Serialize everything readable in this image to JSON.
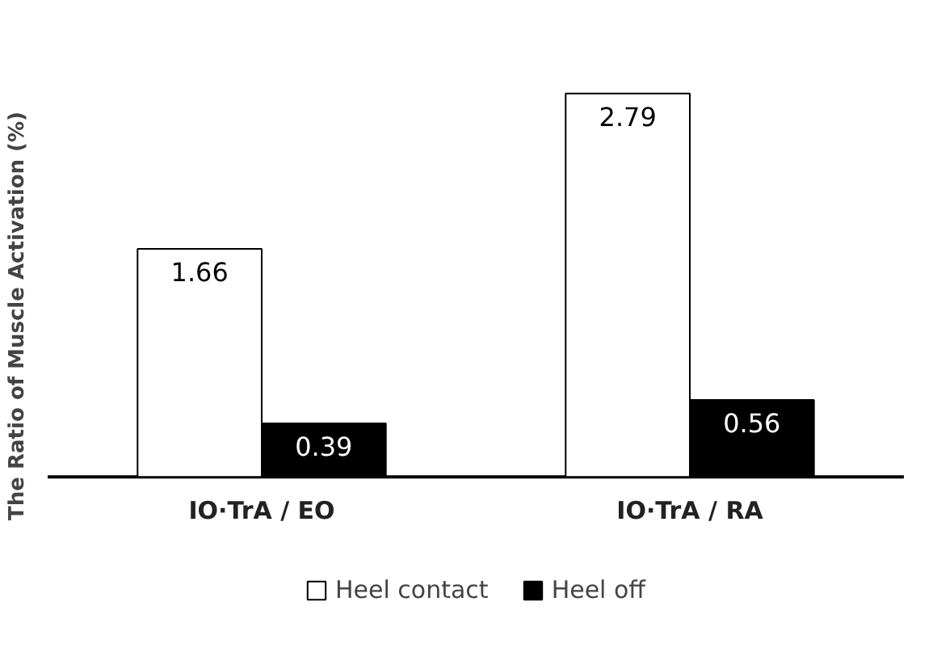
{
  "chart_data": {
    "type": "bar",
    "ylabel": "The Ratio of Muscle Activation (%)",
    "categories": [
      "IO·TrA / EO",
      "IO·TrA / RA"
    ],
    "series": [
      {
        "name": "Heel contact",
        "color": "#ffffff",
        "values": [
          1.66,
          2.79
        ]
      },
      {
        "name": "Heel off",
        "color": "#000000",
        "values": [
          0.39,
          0.56
        ]
      }
    ],
    "data_labels": true,
    "legend": "bottom"
  }
}
